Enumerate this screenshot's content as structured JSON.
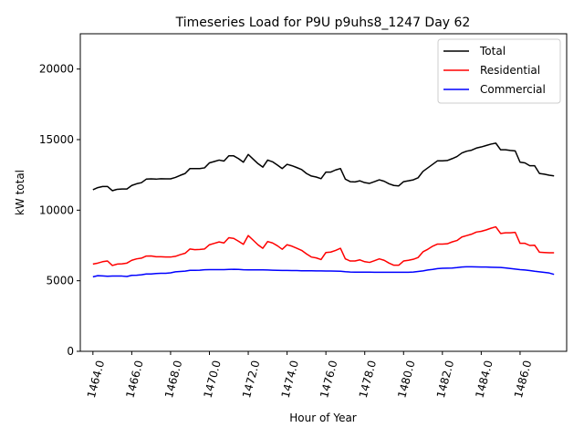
{
  "chart_data": {
    "type": "line",
    "title": "Timeseries Load for P9U p9uhs8_1247  Day 62",
    "xlabel": "Hour of Year",
    "ylabel": "kW total",
    "xlim": [
      1463.35,
      1488.4
    ],
    "ylim": [
      0,
      22500
    ],
    "x_ticks": [
      1464,
      1466,
      1468,
      1470,
      1472,
      1474,
      1476,
      1478,
      1480,
      1482,
      1484,
      1486
    ],
    "x_tick_labels": [
      "1464.0",
      "1466.0",
      "1468.0",
      "1470.0",
      "1472.0",
      "1474.0",
      "1476.0",
      "1478.0",
      "1480.0",
      "1482.0",
      "1484.0",
      "1486.0"
    ],
    "y_ticks": [
      0,
      5000,
      10000,
      15000,
      20000
    ],
    "y_tick_labels": [
      "0",
      "5000",
      "10000",
      "15000",
      "20000"
    ],
    "x_start": 1464,
    "x_step": 0.25,
    "legend_position": "top-right",
    "series": [
      {
        "name": "Total",
        "color": "#000000",
        "values": [
          11450,
          11600,
          11680,
          11680,
          11380,
          11480,
          11500,
          11500,
          11750,
          11870,
          11950,
          12200,
          12220,
          12200,
          12230,
          12220,
          12220,
          12320,
          12470,
          12600,
          12950,
          12950,
          12950,
          13000,
          13350,
          13450,
          13550,
          13480,
          13850,
          13850,
          13650,
          13400,
          13950,
          13620,
          13300,
          13050,
          13550,
          13430,
          13200,
          12950,
          13250,
          13150,
          13020,
          12880,
          12600,
          12420,
          12350,
          12230,
          12700,
          12700,
          12850,
          12950,
          12200,
          12020,
          12000,
          12080,
          11950,
          11900,
          12020,
          12150,
          12050,
          11870,
          11750,
          11720,
          12020,
          12080,
          12150,
          12300,
          12750,
          13000,
          13250,
          13500,
          13500,
          13520,
          13650,
          13800,
          14050,
          14180,
          14250,
          14400,
          14480,
          14580,
          14680,
          14750,
          14280,
          14280,
          14230,
          14200,
          13400,
          13350,
          13150,
          13150,
          12600,
          12550,
          12480,
          12430
        ]
      },
      {
        "name": "Residential",
        "color": "#ff0000",
        "values": [
          6180,
          6250,
          6350,
          6400,
          6080,
          6180,
          6200,
          6250,
          6450,
          6550,
          6600,
          6750,
          6760,
          6700,
          6700,
          6680,
          6680,
          6730,
          6850,
          6950,
          7250,
          7200,
          7220,
          7250,
          7550,
          7650,
          7750,
          7680,
          8050,
          8000,
          7800,
          7580,
          8200,
          7880,
          7550,
          7300,
          7780,
          7680,
          7480,
          7230,
          7550,
          7450,
          7300,
          7150,
          6900,
          6680,
          6620,
          6500,
          7000,
          7030,
          7150,
          7300,
          6550,
          6400,
          6400,
          6480,
          6350,
          6300,
          6420,
          6550,
          6450,
          6250,
          6100,
          6100,
          6400,
          6450,
          6520,
          6650,
          7050,
          7230,
          7450,
          7600,
          7600,
          7620,
          7750,
          7850,
          8100,
          8200,
          8300,
          8450,
          8500,
          8600,
          8720,
          8820,
          8350,
          8400,
          8400,
          8430,
          7650,
          7650,
          7500,
          7520,
          7020,
          7000,
          6980,
          6980
        ]
      },
      {
        "name": "Commercial",
        "color": "#0000ff",
        "values": [
          5280,
          5360,
          5340,
          5320,
          5330,
          5330,
          5330,
          5300,
          5380,
          5390,
          5420,
          5480,
          5480,
          5510,
          5530,
          5530,
          5560,
          5630,
          5660,
          5680,
          5740,
          5740,
          5750,
          5780,
          5790,
          5790,
          5790,
          5790,
          5800,
          5810,
          5800,
          5780,
          5770,
          5770,
          5770,
          5770,
          5760,
          5750,
          5740,
          5730,
          5730,
          5720,
          5720,
          5710,
          5710,
          5710,
          5700,
          5700,
          5690,
          5690,
          5680,
          5670,
          5640,
          5620,
          5610,
          5610,
          5610,
          5610,
          5600,
          5600,
          5600,
          5600,
          5600,
          5600,
          5600,
          5600,
          5620,
          5660,
          5700,
          5760,
          5800,
          5860,
          5880,
          5890,
          5900,
          5930,
          5970,
          5990,
          5990,
          5980,
          5970,
          5970,
          5960,
          5950,
          5940,
          5910,
          5870,
          5830,
          5790,
          5760,
          5720,
          5670,
          5630,
          5590,
          5550,
          5450
        ]
      }
    ]
  }
}
